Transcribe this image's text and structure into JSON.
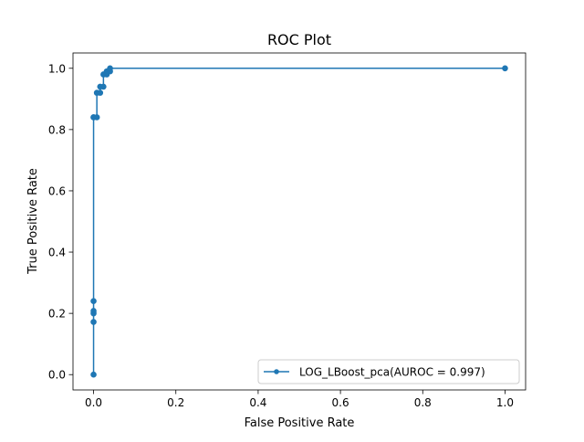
{
  "chart_data": {
    "type": "line",
    "title": "ROC Plot",
    "xlabel": "False Positive Rate",
    "ylabel": "True Positive Rate",
    "xlim": [
      -0.05,
      1.05
    ],
    "ylim": [
      -0.05,
      1.05
    ],
    "xticks": [
      "0.0",
      "0.2",
      "0.4",
      "0.6",
      "0.8",
      "1.0"
    ],
    "yticks": [
      "0.0",
      "0.2",
      "0.4",
      "0.6",
      "0.8",
      "1.0"
    ],
    "grid": false,
    "legend_position": "bottom-right",
    "series": [
      {
        "name": "LOG_LBoost_pca(AUROC = 0.997)",
        "color": "#1f77b4",
        "marker": "circle",
        "x": [
          0.0,
          0.0,
          0.0,
          0.0,
          0.0,
          0.0,
          0.0,
          0.008,
          0.008,
          0.016,
          0.016,
          0.024,
          0.024,
          0.032,
          0.032,
          0.04,
          0.04,
          1.0
        ],
        "y": [
          0.0,
          0.172,
          0.2,
          0.208,
          0.24,
          0.84,
          0.84,
          0.84,
          0.92,
          0.92,
          0.94,
          0.94,
          0.98,
          0.98,
          0.99,
          0.99,
          1.0,
          1.0
        ]
      }
    ]
  }
}
